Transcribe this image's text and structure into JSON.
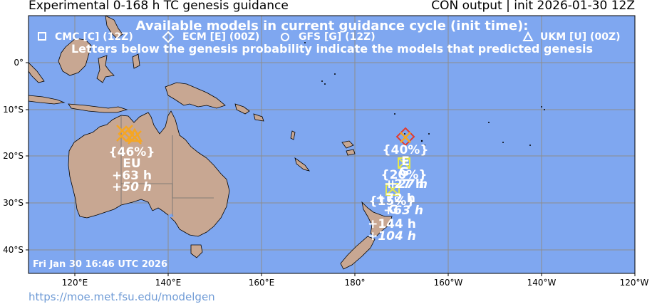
{
  "header": {
    "title_left": "Experimental 0-168 h TC genesis guidance",
    "title_right": "CON output | init 2026-01-30 12Z"
  },
  "legend": {
    "heading": "Available models in current guidance cycle (init time):",
    "models": [
      {
        "symbol": "square",
        "label": "CMC [C] (12Z)"
      },
      {
        "symbol": "diamond",
        "label": "ECM [E] (00Z)"
      },
      {
        "symbol": "circle",
        "label": "GFS [G] (12Z)"
      },
      {
        "symbol": "triangle",
        "label": "UKM [U] (00Z)"
      }
    ],
    "note": "Letters below the genesis probability indicate the models that predicted genesis"
  },
  "axes": {
    "lat_labels": [
      "0°",
      "10°S",
      "20°S",
      "30°S",
      "40°S"
    ],
    "lon_labels": [
      "120°E",
      "140°E",
      "160°E",
      "180°",
      "160°W",
      "140°W",
      "120°W"
    ]
  },
  "timestamp": "Fri Jan 30 16:46 UTC 2026",
  "footer_url": "https://moe.met.fsu.edu/modelgen",
  "systems": [
    {
      "name": "australia",
      "prob": "{46%}",
      "models": "EU",
      "t1": "+63 h",
      "t2": "+50 h"
    },
    {
      "name": "fiji-north",
      "prob": "{40%}",
      "models": "E",
      "t1": "",
      "t2": ""
    },
    {
      "name": "fiji-mid",
      "prob": "{20%}",
      "models": "G",
      "t1": "+27 h",
      "t2": "+27 h"
    },
    {
      "name": "fiji-south",
      "prob": "{15%}",
      "models": "G",
      "t1": "+72 h",
      "t2": "+63 h"
    },
    {
      "name": "nz-north",
      "prob": "",
      "models": "",
      "t1": "+144 h",
      "t2": "+104 h"
    }
  ],
  "colors": {
    "ocean": "#7fa7f0",
    "land": "#c8a792",
    "grid": "#8c8c8c",
    "white_text": "#ffffff",
    "orange": "#f5a623",
    "yellow": "#e6e84a",
    "red": "#e03c31"
  }
}
